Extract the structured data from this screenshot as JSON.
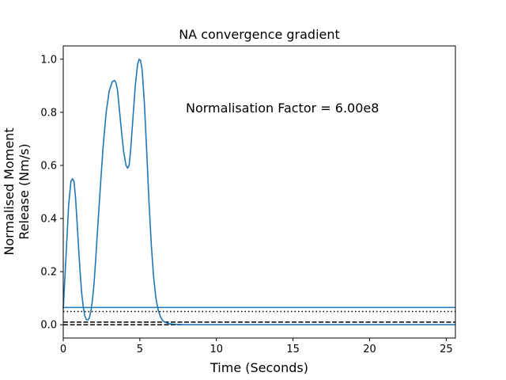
{
  "chart_data": {
    "type": "line",
    "title": "NA convergence gradient",
    "xlabel": "Time (Seconds)",
    "ylabel_lines": [
      "Normalised Moment",
      "Release (Nm/s)"
    ],
    "xlim": [
      0,
      25.6
    ],
    "ylim": [
      -0.05,
      1.05
    ],
    "xticks": [
      0,
      5,
      10,
      15,
      20,
      25
    ],
    "xtick_labels": [
      "0",
      "5",
      "10",
      "15",
      "20",
      "25"
    ],
    "yticks": [
      0.0,
      0.2,
      0.4,
      0.6,
      0.8,
      1.0
    ],
    "ytick_labels": [
      "0.0",
      "0.2",
      "0.4",
      "0.6",
      "0.8",
      "1.0"
    ],
    "annotation": "Normalisation Factor = 6.00e8",
    "grid": false,
    "series": [
      {
        "color": "#1f77b4",
        "style": "solid",
        "x": [
          0.0,
          0.2,
          0.35,
          0.5,
          0.6,
          0.7,
          0.8,
          0.9,
          1.0,
          1.1,
          1.2,
          1.3,
          1.4,
          1.5,
          1.6,
          1.7,
          1.8,
          1.9,
          2.0,
          2.1,
          2.2,
          2.4,
          2.6,
          2.8,
          3.0,
          3.2,
          3.35,
          3.45,
          3.55,
          3.65,
          3.8,
          3.95,
          4.1,
          4.2,
          4.3,
          4.4,
          4.55,
          4.7,
          4.85,
          4.95,
          5.05,
          5.15,
          5.3,
          5.45,
          5.6,
          5.75,
          5.9,
          6.05,
          6.2,
          6.35,
          6.5,
          6.7,
          6.9,
          7.2,
          7.6,
          8.0,
          10.0,
          15.0,
          20.0,
          25.6
        ],
        "y": [
          0.06,
          0.28,
          0.45,
          0.54,
          0.55,
          0.54,
          0.48,
          0.39,
          0.29,
          0.2,
          0.12,
          0.07,
          0.035,
          0.02,
          0.018,
          0.025,
          0.05,
          0.09,
          0.15,
          0.23,
          0.32,
          0.5,
          0.67,
          0.8,
          0.88,
          0.915,
          0.92,
          0.91,
          0.88,
          0.82,
          0.73,
          0.65,
          0.6,
          0.59,
          0.6,
          0.66,
          0.78,
          0.9,
          0.98,
          1.0,
          0.995,
          0.96,
          0.83,
          0.65,
          0.46,
          0.3,
          0.18,
          0.1,
          0.055,
          0.03,
          0.015,
          0.008,
          0.004,
          0.002,
          0.001,
          0.0,
          0.0,
          0.0,
          0.0,
          0.0
        ]
      }
    ],
    "hlines": [
      {
        "y": 0.065,
        "color": "#1f77b4",
        "style": "solid"
      },
      {
        "y": 0.05,
        "color": "#000000",
        "style": "dotted"
      },
      {
        "y": 0.01,
        "color": "#000000",
        "style": "dashed"
      },
      {
        "y": 0.0,
        "color": "#000000",
        "style": "dashed"
      }
    ]
  }
}
